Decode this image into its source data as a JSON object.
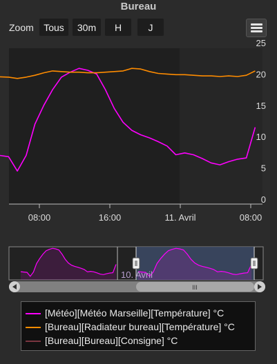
{
  "title": "Bureau",
  "zoom": {
    "label": "Zoom",
    "buttons": [
      "Tous",
      "30m",
      "H",
      "J"
    ]
  },
  "menu_icon": "hamburger-menu-icon",
  "navigator": {
    "date_label": "10. Avril",
    "scrollbar_grip": "III"
  },
  "legend": [
    {
      "label": "[Météo][Météo Marseille][Température] °C",
      "color": "#ff00ff"
    },
    {
      "label": "[Bureau][Radiateur bureau][Température] °C",
      "color": "#ff8c00"
    },
    {
      "label": "[Bureau][Bureau][Consigne] °C",
      "color": "#7a3540"
    }
  ],
  "chart_data": {
    "type": "line",
    "title": "Bureau",
    "x_ticks": [
      "08:00",
      "16:00",
      "11. Avril",
      "08:00"
    ],
    "y_ticks": [
      0,
      5,
      10,
      15,
      20,
      25
    ],
    "ylim": [
      0,
      25
    ],
    "y_axis_side": "right",
    "grid": false,
    "x_hours": [
      2.5,
      4.5,
      5.5,
      6.5,
      7.5,
      8.5,
      9.5,
      10.5,
      11.5,
      12.5,
      13.5,
      14.5,
      15.5,
      16.5,
      17.5,
      18.5,
      19.5,
      20.5,
      21.5,
      22.5,
      23.5,
      24.5,
      25.5,
      26.5,
      27.5,
      28.5,
      29.5,
      30.5,
      31.5,
      32.5
    ],
    "series": [
      {
        "name": "[Météo][Météo Marseille][Température] °C",
        "color": "#ff00ff",
        "values": [
          7.2,
          6.8,
          4.5,
          7.0,
          12.0,
          15.0,
          17.5,
          19.5,
          20.3,
          20.9,
          20.6,
          20.0,
          17.5,
          14.5,
          12.3,
          11.0,
          10.3,
          9.8,
          9.2,
          8.5,
          7.1,
          7.4,
          7.1,
          6.5,
          5.8,
          5.5,
          6.0,
          6.4,
          6.6,
          11.5
        ]
      },
      {
        "name": "[Bureau][Radiateur bureau][Température] °C",
        "color": "#ff8c00",
        "values": [
          19.6,
          19.5,
          19.3,
          19.5,
          19.8,
          20.2,
          20.5,
          20.4,
          20.3,
          20.3,
          20.2,
          20.2,
          20.3,
          20.4,
          20.5,
          20.9,
          20.8,
          20.4,
          20.1,
          20.0,
          19.9,
          19.9,
          19.8,
          19.7,
          19.7,
          19.6,
          19.7,
          19.6,
          19.8,
          20.5
        ]
      },
      {
        "name": "[Bureau][Bureau][Consigne] °C",
        "color": "#7a3540",
        "values": []
      }
    ]
  }
}
